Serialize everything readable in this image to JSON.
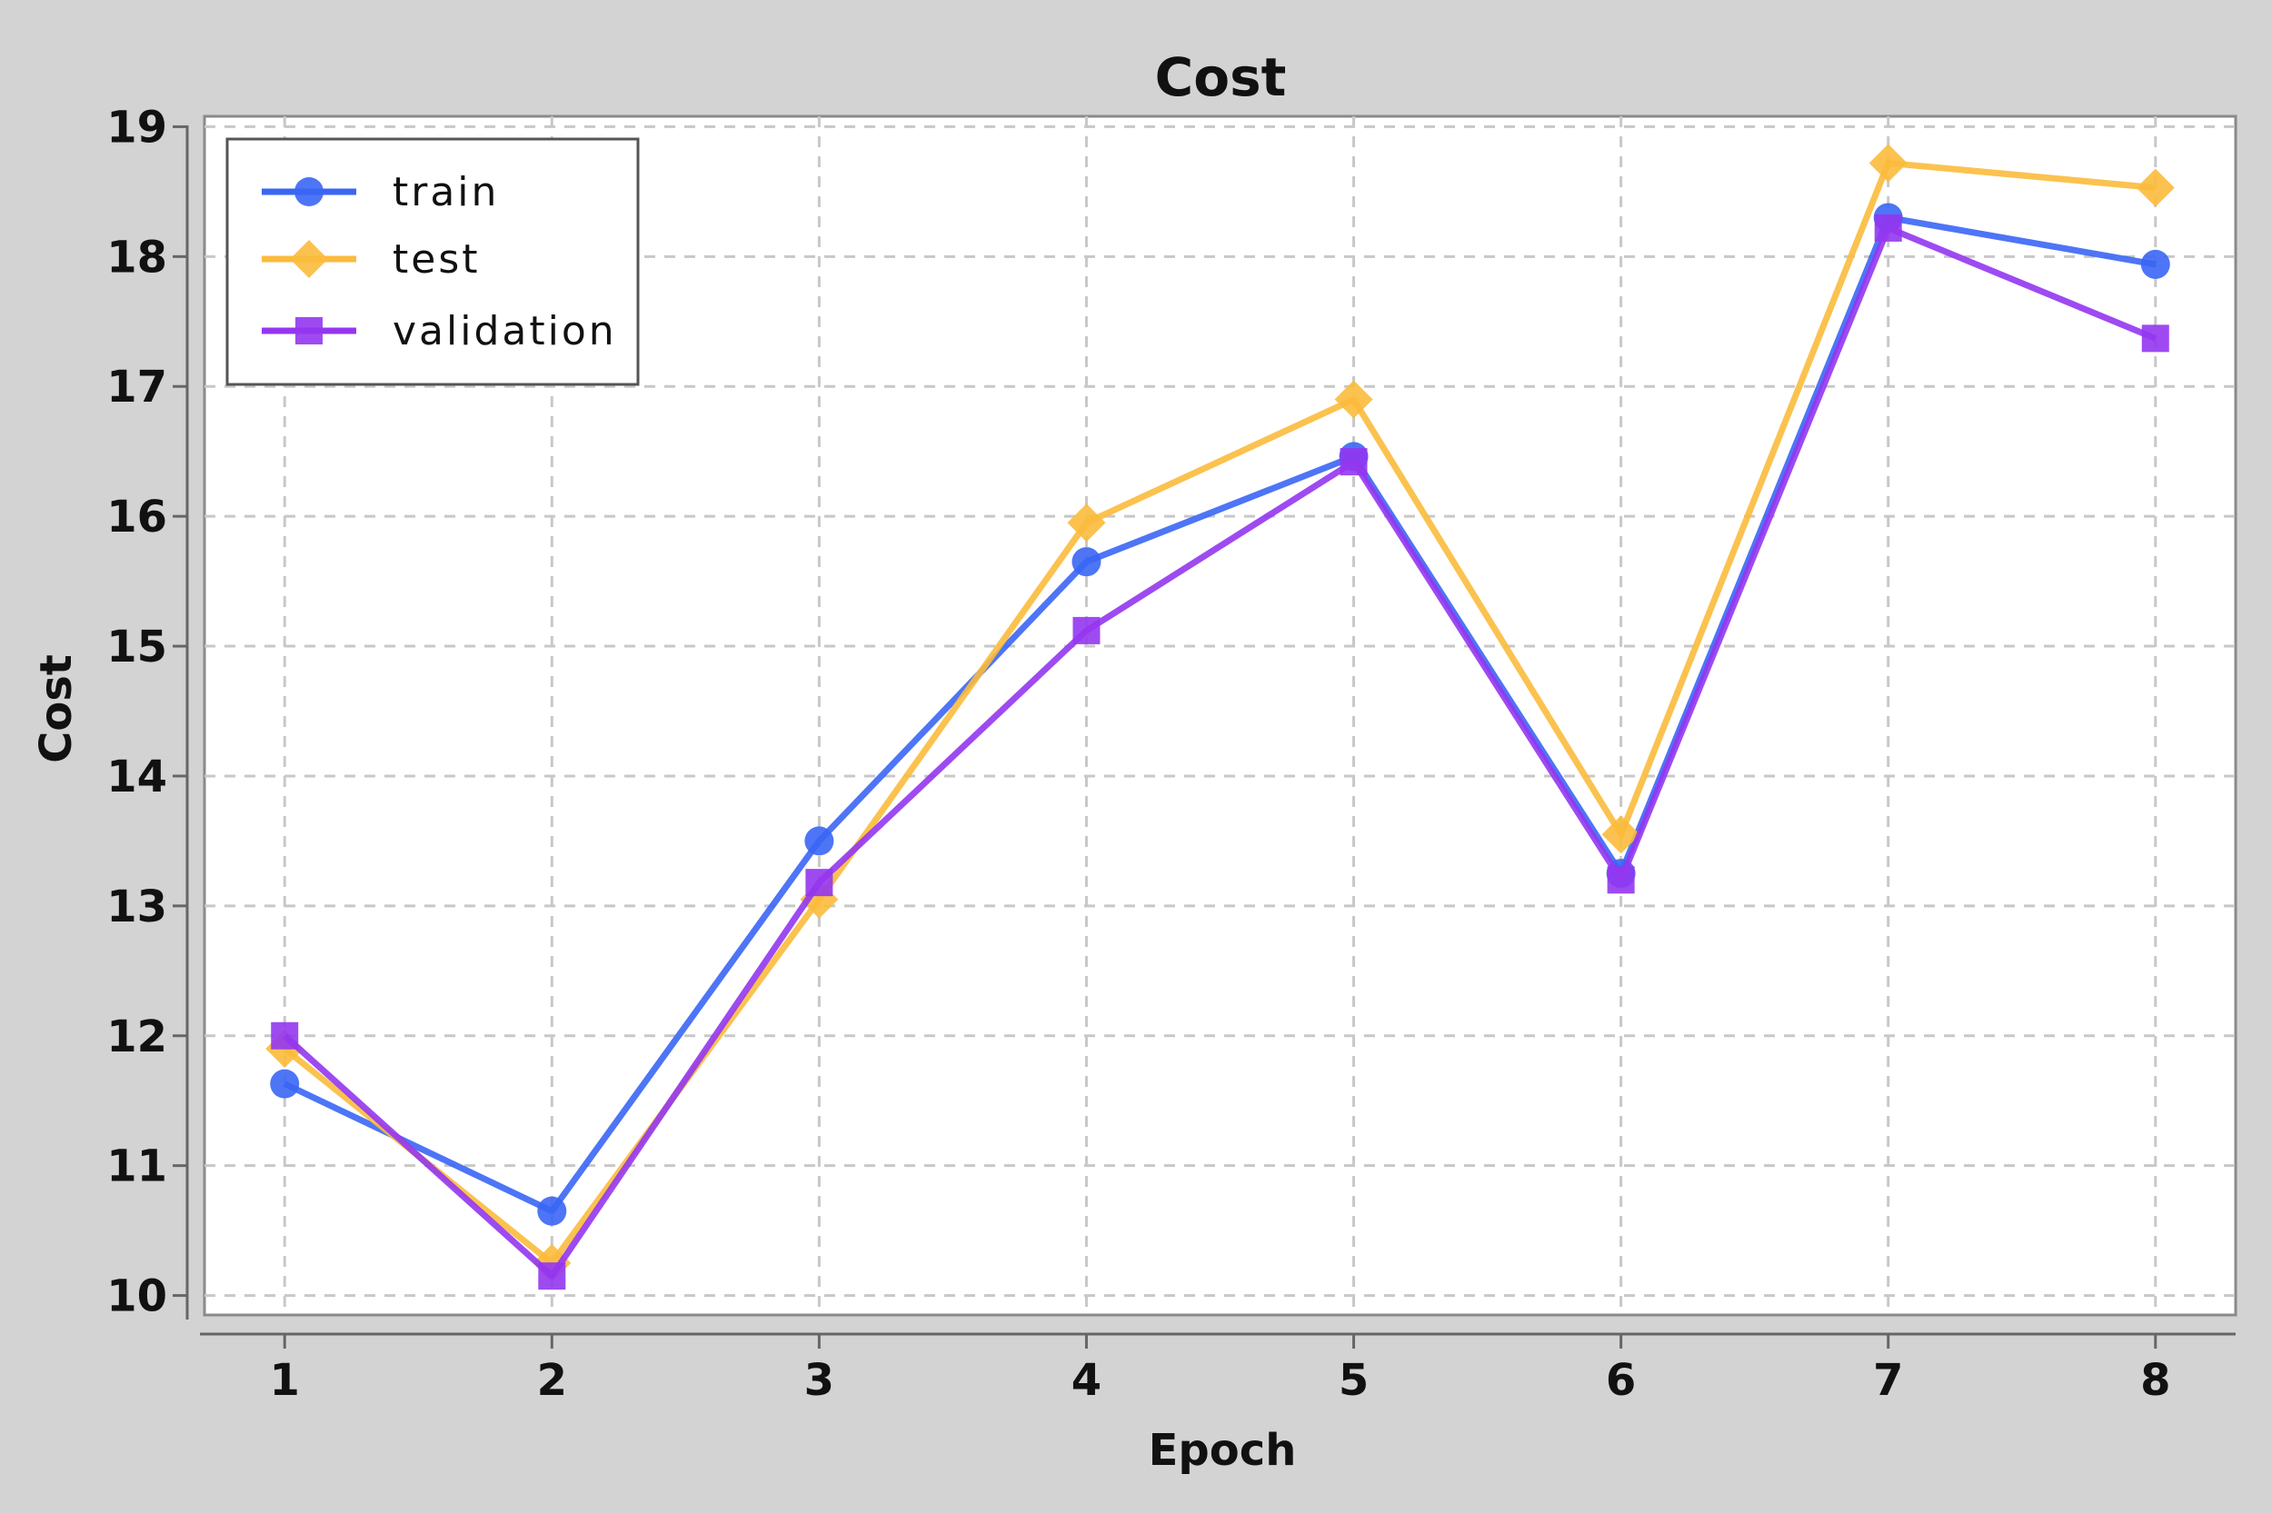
{
  "chart_data": {
    "type": "line",
    "title": "Cost",
    "xlabel": "Epoch",
    "ylabel": "Cost",
    "x": [
      1,
      2,
      3,
      4,
      5,
      6,
      7,
      8
    ],
    "x_ticks": [
      "1",
      "2",
      "3",
      "4",
      "5",
      "6",
      "7",
      "8"
    ],
    "y_ticks": [
      "10",
      "11",
      "12",
      "13",
      "14",
      "15",
      "16",
      "17",
      "18",
      "19"
    ],
    "xlim": [
      0.7,
      8.3
    ],
    "ylim": [
      9.85,
      19.08
    ],
    "grid": true,
    "legend_position": "top-left",
    "series": [
      {
        "name": "train",
        "color": "#3a66f5",
        "marker": "circle",
        "values": [
          11.63,
          10.65,
          13.5,
          15.65,
          16.46,
          13.25,
          18.3,
          17.94
        ]
      },
      {
        "name": "test",
        "color": "#fbbb3c",
        "marker": "diamond",
        "values": [
          11.9,
          10.25,
          13.05,
          15.95,
          16.9,
          13.55,
          18.72,
          18.53
        ]
      },
      {
        "name": "validation",
        "color": "#9436f0",
        "marker": "square",
        "values": [
          12.0,
          10.15,
          13.18,
          15.12,
          16.42,
          13.2,
          18.22,
          17.37
        ]
      }
    ]
  }
}
